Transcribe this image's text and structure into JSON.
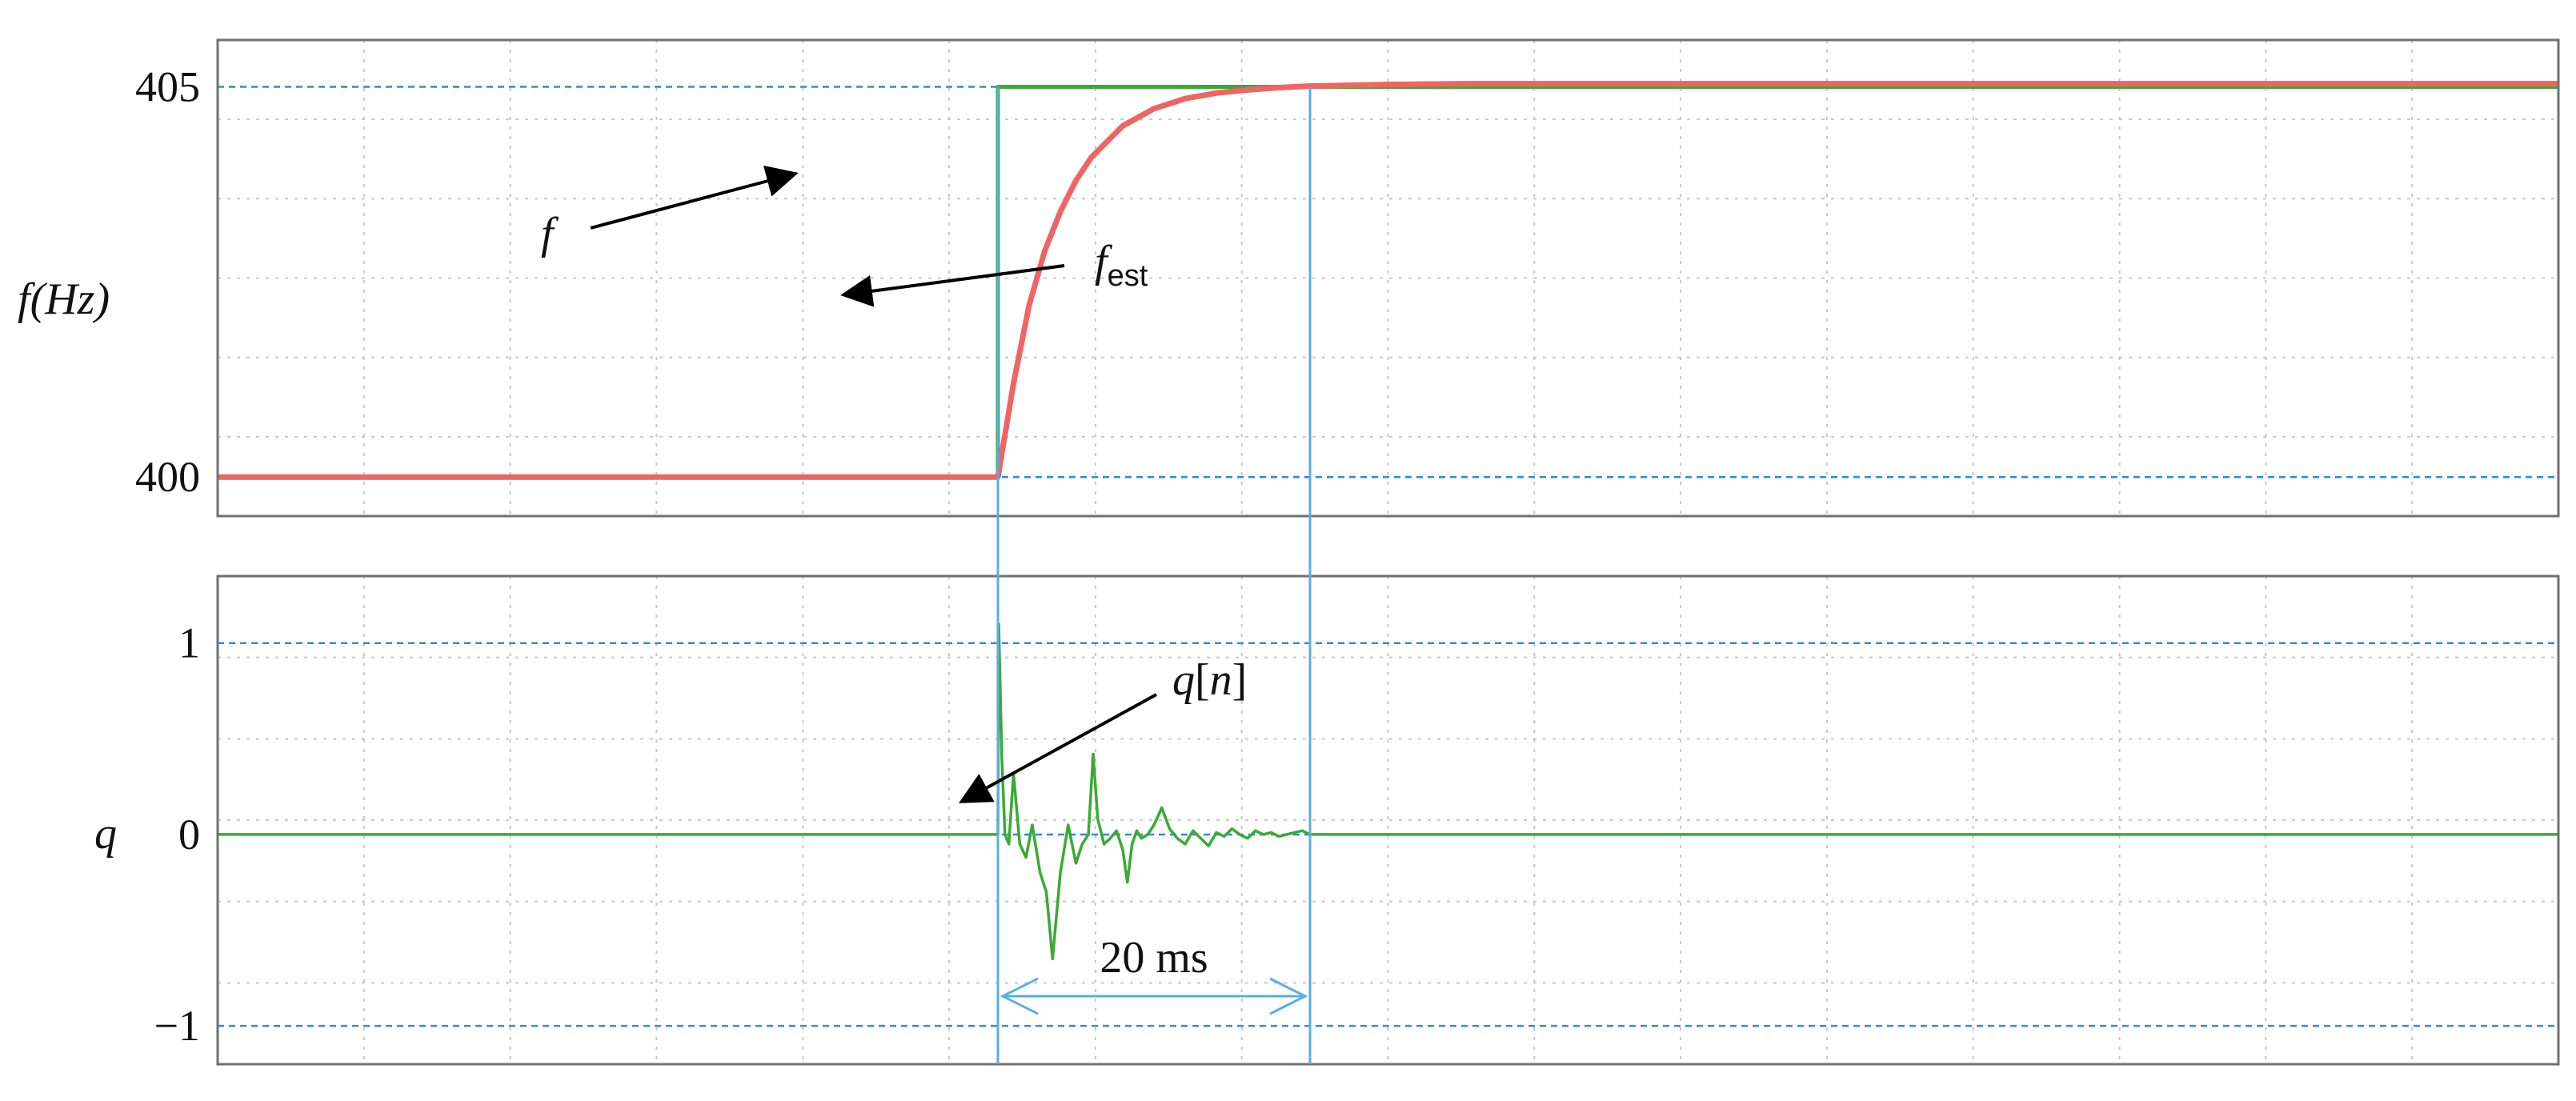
{
  "chart_data": [
    {
      "type": "line",
      "title": "",
      "xlabel": "",
      "ylabel_italic": "f",
      "ylabel_rest": "(Hz)",
      "ylim": [
        399.5,
        405.6
      ],
      "yticks": [
        400,
        405
      ],
      "ytick_labels": [
        "400",
        "405"
      ],
      "xlim": [
        -50,
        100
      ],
      "grid": true,
      "series": [
        {
          "name": "f",
          "color": "#3aaa35",
          "x": [
            -50,
            0,
            0,
            100
          ],
          "y": [
            400,
            400,
            405,
            405
          ]
        },
        {
          "name": "fest",
          "color": "#f06464",
          "x": [
            -50,
            0,
            1,
            2,
            3,
            4,
            5,
            6,
            8,
            10,
            12,
            14,
            16,
            18,
            20,
            25,
            30,
            40,
            60,
            80,
            100
          ],
          "y": [
            400,
            400,
            401.2,
            402.2,
            402.9,
            403.4,
            403.8,
            404.1,
            404.5,
            404.72,
            404.85,
            404.92,
            404.96,
            404.99,
            405.01,
            405.03,
            405.04,
            405.04,
            405.04,
            405.04,
            405.04
          ]
        }
      ],
      "annotations": [
        {
          "label": "f",
          "target": [
            0,
            404.0
          ]
        },
        {
          "label": "f",
          "subscript": "est",
          "target": [
            4,
            402.4
          ]
        }
      ]
    },
    {
      "type": "line",
      "title": "",
      "xlabel": "",
      "ylabel": "q",
      "ylim": [
        -1.2,
        1.35
      ],
      "yticks": [
        1,
        0,
        -1
      ],
      "ytick_labels": [
        "1",
        "0",
        "−1"
      ],
      "xlim": [
        -50,
        100
      ],
      "grid": true,
      "series": [
        {
          "name": "q[n]",
          "color": "#3aaa35",
          "x": [
            -50,
            0,
            0.05,
            0.25,
            0.45,
            0.7,
            1.0,
            1.4,
            1.8,
            2.2,
            2.7,
            3.1,
            3.5,
            4.0,
            4.5,
            5.0,
            5.4,
            5.8,
            6.1,
            6.4,
            6.8,
            7.2,
            7.6,
            8.0,
            8.3,
            8.6,
            8.9,
            9.2,
            9.6,
            10.0,
            10.5,
            11.0,
            11.5,
            12.0,
            12.5,
            13.0,
            13.5,
            14.0,
            14.5,
            15.0,
            15.5,
            16.0,
            16.5,
            17.0,
            17.5,
            18.0,
            18.5,
            19.0,
            19.5,
            20.0,
            20.5,
            100
          ],
          "y": [
            0,
            0,
            1.1,
            0.4,
            0.0,
            -0.05,
            0.32,
            -0.05,
            -0.12,
            0.05,
            -0.2,
            -0.3,
            -0.65,
            -0.2,
            0.05,
            -0.15,
            -0.05,
            0.0,
            0.42,
            0.08,
            -0.05,
            -0.02,
            0.02,
            -0.08,
            -0.25,
            -0.05,
            0.02,
            -0.02,
            0.0,
            0.05,
            0.14,
            0.03,
            -0.02,
            -0.05,
            0.02,
            -0.02,
            -0.06,
            0.01,
            -0.01,
            0.03,
            0.0,
            -0.02,
            0.02,
            0.0,
            0.01,
            -0.01,
            0.0,
            0.01,
            0.02,
            0.0,
            0.0,
            0
          ]
        }
      ],
      "annotations": [
        {
          "label": "q[n]",
          "target": [
            5.8,
            0.18
          ]
        },
        {
          "label": "20 ms",
          "kind": "dimension",
          "from": 0,
          "to": 20
        }
      ]
    }
  ],
  "labels": {
    "f_arrow": "f",
    "fest_main": "f",
    "fest_sub": "est",
    "qn_q": "q",
    "qn_lb": "[",
    "qn_n": "n",
    "qn_rb": "]",
    "dimension": "20 ms"
  },
  "colors": {
    "f_line": "#3aaa35",
    "fest_line": "#f06464",
    "q_line": "#3aaa35",
    "marker_line": "#5aaee0",
    "ref_grid": "#2b8ce0",
    "grid": "#c8c8c8",
    "frame": "#707070"
  }
}
